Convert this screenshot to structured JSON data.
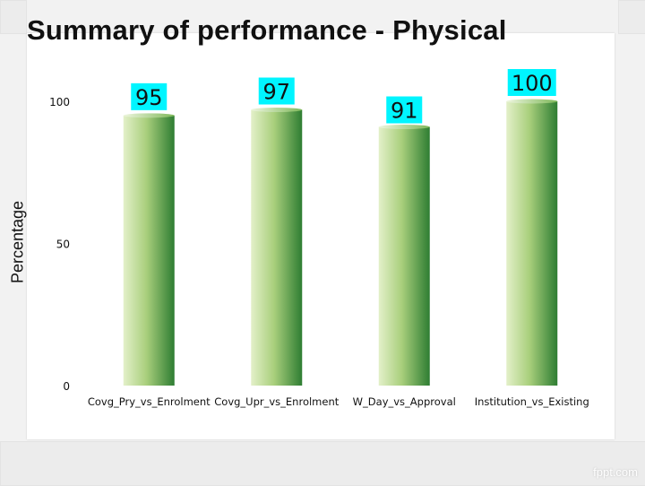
{
  "title": "Summary of performance - Physical",
  "watermark": "fppt.com",
  "colors": {
    "bar_light": "#d4e9b4",
    "bar_dark": "#2e7d32",
    "label_bg": "#00f5ff",
    "title": "#111111"
  },
  "chart_data": {
    "type": "bar",
    "categories": [
      "Covg_Pry_vs_Enrolment",
      "Covg_Upr_vs_Enrolment",
      "W_Day_vs_Approval",
      "Institution_vs_Existing"
    ],
    "values": [
      95,
      97,
      91,
      100
    ],
    "data_labels": [
      "95",
      "97",
      "91",
      "100"
    ],
    "ylabel": "Percentage",
    "xlabel": "",
    "ylim": [
      0,
      100
    ],
    "yticks": [
      "0",
      "50",
      "100"
    ],
    "grid": false,
    "legend": "none"
  }
}
